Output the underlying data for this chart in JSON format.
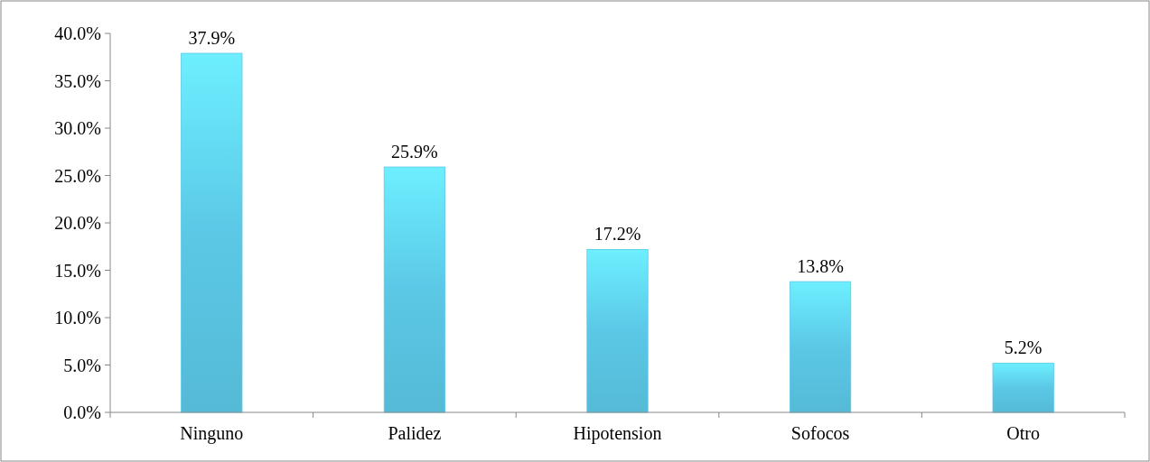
{
  "chart_data": {
    "type": "bar",
    "categories": [
      "Ninguno",
      "Palidez",
      "Hipotension",
      "Sofocos",
      "Otro"
    ],
    "values": [
      37.9,
      25.9,
      17.2,
      13.8,
      5.2
    ],
    "value_labels": [
      "37.9%",
      "25.9%",
      "17.2%",
      "13.8%",
      "5.2%"
    ],
    "color": "#5bc8e6",
    "ylim": [
      0,
      40
    ],
    "yticks": [
      {
        "value": 0,
        "label": "0.0%"
      },
      {
        "value": 5,
        "label": "5.0%"
      },
      {
        "value": 10,
        "label": "10.0%"
      },
      {
        "value": 15,
        "label": "15.0%"
      },
      {
        "value": 20,
        "label": "20.0%"
      },
      {
        "value": 25,
        "label": "25.0%"
      },
      {
        "value": 30,
        "label": "30.0%"
      },
      {
        "value": 35,
        "label": "35.0%"
      },
      {
        "value": 40,
        "label": "40.0%"
      }
    ],
    "grid": false
  }
}
